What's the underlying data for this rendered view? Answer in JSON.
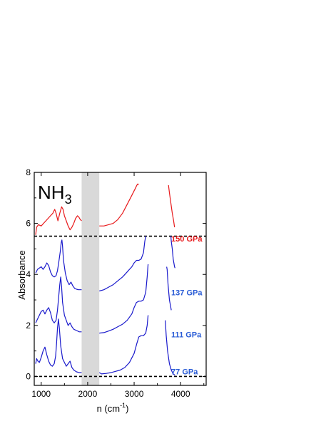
{
  "chart_data": {
    "type": "line",
    "title": "NH",
    "title_subscript": "3",
    "xlabel_main": "n (cm",
    "xlabel_sup": "-1",
    "xlabel_close": ")",
    "ylabel": "Absorbance",
    "xlim": [
      850,
      4550
    ],
    "ylim": [
      -0.35,
      8.0
    ],
    "x_ticks": [
      1000,
      2000,
      3000,
      4000
    ],
    "y_ticks": [
      0,
      2,
      4,
      6,
      8
    ],
    "grid": false,
    "shaded_region": {
      "x": [
        1870,
        2250
      ],
      "color": "#d9d9d9"
    },
    "colors": {
      "red": "#e8191b",
      "blue": "#1a1acc",
      "label_blue": "#2a5cd6",
      "label_red": "#e8191b"
    },
    "series": [
      {
        "name": "150 GPa",
        "color": "#e8191b",
        "baseline": 5.5,
        "segments": [
          [
            [
              880,
              5.55
            ],
            [
              900,
              5.85
            ],
            [
              940,
              5.95
            ],
            [
              1000,
              5.9
            ],
            [
              1050,
              6.0
            ],
            [
              1100,
              6.1
            ],
            [
              1150,
              6.2
            ],
            [
              1200,
              6.3
            ],
            [
              1250,
              6.4
            ],
            [
              1290,
              6.55
            ],
            [
              1320,
              6.4
            ],
            [
              1360,
              6.1
            ],
            [
              1400,
              6.4
            ],
            [
              1440,
              6.65
            ],
            [
              1470,
              6.55
            ],
            [
              1500,
              6.3
            ],
            [
              1540,
              6.1
            ],
            [
              1580,
              5.9
            ],
            [
              1620,
              5.75
            ],
            [
              1660,
              5.85
            ],
            [
              1700,
              6.0
            ],
            [
              1740,
              6.2
            ],
            [
              1780,
              6.3
            ],
            [
              1810,
              6.25
            ],
            [
              1840,
              6.15
            ],
            [
              1870,
              6.1
            ]
          ],
          [
            [
              2250,
              5.9
            ],
            [
              2350,
              5.9
            ],
            [
              2450,
              5.95
            ],
            [
              2550,
              6.0
            ],
            [
              2650,
              6.15
            ],
            [
              2750,
              6.4
            ],
            [
              2850,
              6.75
            ],
            [
              2950,
              7.1
            ],
            [
              3020,
              7.35
            ],
            [
              3060,
              7.5
            ],
            [
              3080,
              7.55
            ],
            [
              3090,
              7.5
            ]
          ],
          [
            [
              3740,
              7.5
            ],
            [
              3760,
              7.2
            ],
            [
              3790,
              6.8
            ],
            [
              3820,
              6.4
            ],
            [
              3850,
              6.1
            ],
            [
              3870,
              5.85
            ]
          ]
        ]
      },
      {
        "name": "137 GPa",
        "color": "#1a1acc",
        "baseline": null,
        "segments": [
          [
            [
              880,
              4.05
            ],
            [
              920,
              4.2
            ],
            [
              960,
              4.25
            ],
            [
              1000,
              4.3
            ],
            [
              1040,
              4.2
            ],
            [
              1080,
              4.3
            ],
            [
              1120,
              4.45
            ],
            [
              1160,
              4.35
            ],
            [
              1200,
              4.1
            ],
            [
              1240,
              3.95
            ],
            [
              1280,
              3.9
            ],
            [
              1320,
              3.95
            ],
            [
              1350,
              4.15
            ],
            [
              1380,
              4.5
            ],
            [
              1410,
              4.9
            ],
            [
              1430,
              5.25
            ],
            [
              1445,
              5.35
            ],
            [
              1460,
              5.1
            ],
            [
              1480,
              4.55
            ],
            [
              1520,
              4.05
            ],
            [
              1560,
              3.75
            ],
            [
              1600,
              3.6
            ],
            [
              1640,
              3.7
            ],
            [
              1680,
              3.55
            ],
            [
              1720,
              3.45
            ],
            [
              1760,
              3.42
            ],
            [
              1800,
              3.4
            ],
            [
              1840,
              3.4
            ],
            [
              1870,
              3.4
            ]
          ],
          [
            [
              2250,
              3.35
            ],
            [
              2350,
              3.4
            ],
            [
              2450,
              3.5
            ],
            [
              2550,
              3.6
            ],
            [
              2650,
              3.75
            ],
            [
              2750,
              3.9
            ],
            [
              2850,
              4.1
            ],
            [
              2950,
              4.3
            ],
            [
              3000,
              4.45
            ],
            [
              3050,
              4.55
            ],
            [
              3100,
              4.55
            ],
            [
              3150,
              4.6
            ],
            [
              3200,
              4.85
            ],
            [
              3230,
              5.3
            ],
            [
              3250,
              5.5
            ]
          ],
          [
            [
              3790,
              5.5
            ],
            [
              3800,
              5.3
            ],
            [
              3820,
              5.0
            ],
            [
              3840,
              4.6
            ],
            [
              3870,
              4.3
            ],
            [
              3880,
              4.25
            ]
          ]
        ]
      },
      {
        "name": "111 GPa",
        "color": "#1a1acc",
        "baseline": null,
        "segments": [
          [
            [
              880,
              2.1
            ],
            [
              920,
              2.25
            ],
            [
              960,
              2.4
            ],
            [
              1000,
              2.55
            ],
            [
              1040,
              2.6
            ],
            [
              1080,
              2.45
            ],
            [
              1120,
              2.6
            ],
            [
              1160,
              2.7
            ],
            [
              1200,
              2.5
            ],
            [
              1240,
              2.2
            ],
            [
              1280,
              2.1
            ],
            [
              1320,
              2.2
            ],
            [
              1350,
              2.6
            ],
            [
              1380,
              3.2
            ],
            [
              1400,
              3.6
            ],
            [
              1420,
              3.9
            ],
            [
              1440,
              3.5
            ],
            [
              1460,
              2.9
            ],
            [
              1500,
              2.4
            ],
            [
              1540,
              2.2
            ],
            [
              1580,
              2.0
            ],
            [
              1620,
              2.1
            ],
            [
              1660,
              1.95
            ],
            [
              1700,
              1.85
            ],
            [
              1760,
              1.8
            ],
            [
              1820,
              1.75
            ],
            [
              1870,
              1.75
            ]
          ],
          [
            [
              2250,
              1.7
            ],
            [
              2350,
              1.72
            ],
            [
              2450,
              1.78
            ],
            [
              2550,
              1.85
            ],
            [
              2650,
              1.95
            ],
            [
              2750,
              2.05
            ],
            [
              2850,
              2.2
            ],
            [
              2950,
              2.45
            ],
            [
              3000,
              2.7
            ],
            [
              3050,
              2.9
            ],
            [
              3100,
              2.95
            ],
            [
              3150,
              2.95
            ],
            [
              3200,
              3.0
            ],
            [
              3250,
              3.3
            ],
            [
              3280,
              3.9
            ],
            [
              3300,
              4.4
            ]
          ],
          [
            [
              3700,
              4.3
            ],
            [
              3710,
              4.2
            ],
            [
              3730,
              3.6
            ],
            [
              3760,
              3.0
            ],
            [
              3790,
              2.7
            ],
            [
              3800,
              2.6
            ]
          ]
        ]
      },
      {
        "name": "77 GPa",
        "color": "#1a1acc",
        "baseline": 0.0,
        "segments": [
          [
            [
              880,
              0.5
            ],
            [
              900,
              0.7
            ],
            [
              930,
              0.6
            ],
            [
              960,
              0.55
            ],
            [
              1000,
              0.75
            ],
            [
              1040,
              1.0
            ],
            [
              1080,
              1.15
            ],
            [
              1120,
              0.85
            ],
            [
              1160,
              0.6
            ],
            [
              1200,
              0.45
            ],
            [
              1240,
              0.4
            ],
            [
              1280,
              0.5
            ],
            [
              1310,
              0.8
            ],
            [
              1330,
              1.3
            ],
            [
              1350,
              1.9
            ],
            [
              1370,
              2.25
            ],
            [
              1390,
              1.9
            ],
            [
              1420,
              1.2
            ],
            [
              1460,
              0.7
            ],
            [
              1500,
              0.55
            ],
            [
              1540,
              0.4
            ],
            [
              1580,
              0.5
            ],
            [
              1620,
              0.6
            ],
            [
              1660,
              0.35
            ],
            [
              1700,
              0.25
            ],
            [
              1760,
              0.18
            ],
            [
              1820,
              0.15
            ],
            [
              1870,
              0.15
            ]
          ],
          [
            [
              2250,
              0.15
            ],
            [
              2300,
              0.1
            ],
            [
              2400,
              0.12
            ],
            [
              2500,
              0.15
            ],
            [
              2600,
              0.2
            ],
            [
              2700,
              0.25
            ],
            [
              2800,
              0.35
            ],
            [
              2900,
              0.55
            ],
            [
              3000,
              0.9
            ],
            [
              3060,
              1.3
            ],
            [
              3100,
              1.55
            ],
            [
              3150,
              1.6
            ],
            [
              3200,
              1.6
            ],
            [
              3250,
              1.7
            ],
            [
              3280,
              2.0
            ],
            [
              3300,
              2.4
            ]
          ],
          [
            [
              3670,
              2.2
            ],
            [
              3690,
              1.6
            ],
            [
              3720,
              1.0
            ],
            [
              3760,
              0.5
            ],
            [
              3800,
              0.25
            ],
            [
              3840,
              0.1
            ],
            [
              3880,
              0.05
            ]
          ]
        ]
      }
    ],
    "labels": [
      {
        "text": "150 GPa",
        "x": 3860,
        "y": 5.4,
        "color": "#e8191b"
      },
      {
        "text": "137 GPa",
        "x": 3860,
        "y": 3.3,
        "color": "#2a5cd6"
      },
      {
        "text": "111 GPa",
        "x": 3860,
        "y": 1.65,
        "color": "#2a5cd6"
      },
      {
        "text": "77 GPa",
        "x": 3860,
        "y": 0.2,
        "color": "#2a5cd6"
      }
    ]
  }
}
